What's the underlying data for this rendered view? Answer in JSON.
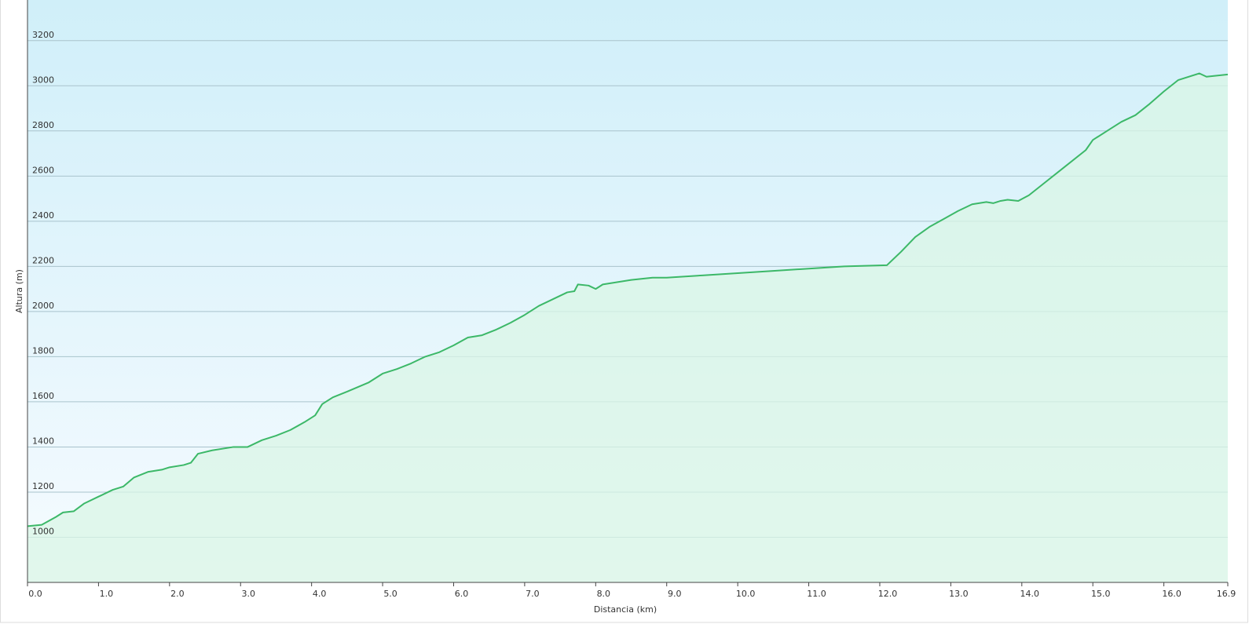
{
  "chart_data": {
    "type": "area",
    "xlabel": "Distancia (km)",
    "ylabel": "Altura (m)",
    "x": [
      0.0,
      0.2,
      0.4,
      0.5,
      0.65,
      0.8,
      1.0,
      1.2,
      1.35,
      1.5,
      1.7,
      1.9,
      2.0,
      2.2,
      2.3,
      2.4,
      2.6,
      2.9,
      3.1,
      3.3,
      3.5,
      3.7,
      3.9,
      4.05,
      4.15,
      4.3,
      4.5,
      4.8,
      5.0,
      5.2,
      5.4,
      5.6,
      5.8,
      6.0,
      6.2,
      6.4,
      6.6,
      6.8,
      7.0,
      7.2,
      7.4,
      7.6,
      7.7,
      7.75,
      7.9,
      8.0,
      8.1,
      8.3,
      8.5,
      8.8,
      9.0,
      9.5,
      10.0,
      10.5,
      11.0,
      11.5,
      12.1,
      12.3,
      12.5,
      12.7,
      12.9,
      13.1,
      13.3,
      13.5,
      13.6,
      13.7,
      13.8,
      13.95,
      14.1,
      14.3,
      14.6,
      14.9,
      15.0,
      15.2,
      15.4,
      15.6,
      15.8,
      16.0,
      16.2,
      16.5,
      16.6,
      16.9
    ],
    "series": [
      {
        "name": "Altura",
        "color": "#3cb868",
        "values": [
          1049,
          1055,
          1090,
          1110,
          1115,
          1150,
          1180,
          1210,
          1225,
          1265,
          1290,
          1300,
          1310,
          1320,
          1330,
          1370,
          1385,
          1400,
          1400,
          1430,
          1450,
          1475,
          1510,
          1540,
          1590,
          1620,
          1645,
          1685,
          1725,
          1745,
          1770,
          1800,
          1820,
          1850,
          1885,
          1895,
          1920,
          1950,
          1985,
          2025,
          2055,
          2085,
          2090,
          2120,
          2115,
          2100,
          2120,
          2130,
          2140,
          2150,
          2150,
          2160,
          2170,
          2180,
          2190,
          2200,
          2205,
          2265,
          2330,
          2375,
          2410,
          2445,
          2475,
          2485,
          2480,
          2490,
          2495,
          2490,
          2515,
          2565,
          2640,
          2715,
          2760,
          2800,
          2840,
          2870,
          2920,
          2975,
          3025,
          3055,
          3040,
          3050
        ]
      }
    ],
    "xlim": [
      0,
      16.9
    ],
    "xticks": [
      {
        "value": 0,
        "label": "0.0"
      },
      {
        "value": 1,
        "label": "1.0"
      },
      {
        "value": 2,
        "label": "2.0"
      },
      {
        "value": 3,
        "label": "3.0"
      },
      {
        "value": 4,
        "label": "4.0"
      },
      {
        "value": 5,
        "label": "5.0"
      },
      {
        "value": 6,
        "label": "6.0"
      },
      {
        "value": 7,
        "label": "7.0"
      },
      {
        "value": 8,
        "label": "8.0"
      },
      {
        "value": 9,
        "label": "9.0"
      },
      {
        "value": 10,
        "label": "10.0"
      },
      {
        "value": 11,
        "label": "11.0"
      },
      {
        "value": 12,
        "label": "12.0"
      },
      {
        "value": 13,
        "label": "13.0"
      },
      {
        "value": 14,
        "label": "14.0"
      },
      {
        "value": 15,
        "label": "15.0"
      },
      {
        "value": 16,
        "label": "16.0"
      },
      16.9
    ],
    "ylim": [
      800,
      3380
    ],
    "yticks": [
      1000,
      1200,
      1400,
      1600,
      1800,
      2000,
      2200,
      2400,
      2600,
      2800,
      3000,
      3200
    ],
    "grid": true
  }
}
